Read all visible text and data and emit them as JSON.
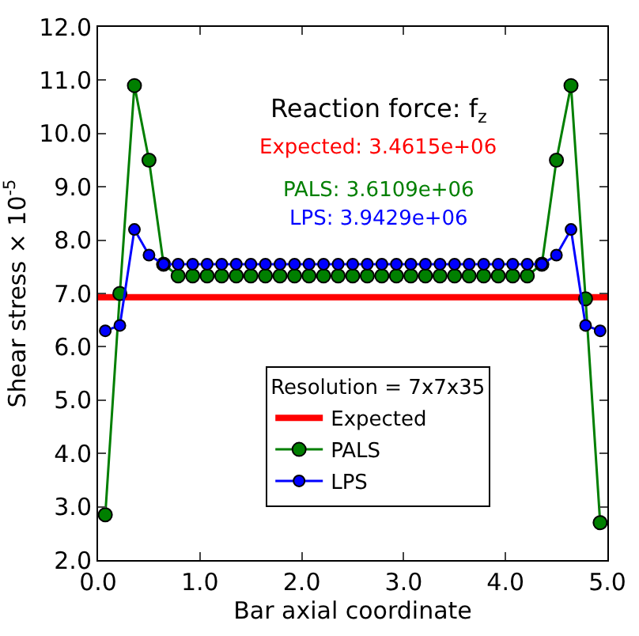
{
  "chart_data": {
    "type": "line",
    "xlabel": "Bar axial coordinate",
    "ylabel": "Shear stress × 10$^{-5}$",
    "annotations": [
      "Reaction force: f$_{z}$",
      "Expected: 3.4615e+06",
      "PALS: 3.6109e+06",
      "LPS: 3.9429e+06"
    ],
    "legend_title": "Resolution = 7x7x35",
    "x": [
      0.071,
      0.214,
      0.357,
      0.5,
      0.643,
      0.786,
      0.929,
      1.071,
      1.214,
      1.357,
      1.5,
      1.643,
      1.786,
      1.929,
      2.071,
      2.214,
      2.357,
      2.5,
      2.643,
      2.786,
      2.929,
      3.071,
      3.214,
      3.357,
      3.5,
      3.643,
      3.786,
      3.929,
      4.071,
      4.214,
      4.357,
      4.5,
      4.643,
      4.786,
      4.929
    ],
    "series": [
      {
        "name": "Expected",
        "color": "#ff0000",
        "x": [
          0,
          5
        ],
        "values": [
          6.93,
          6.93
        ],
        "marker": "none"
      },
      {
        "name": "PALS",
        "color": "#007f00",
        "values": [
          2.85,
          7.0,
          10.9,
          9.5,
          7.55,
          7.33,
          7.33,
          7.33,
          7.33,
          7.33,
          7.33,
          7.33,
          7.33,
          7.33,
          7.33,
          7.33,
          7.33,
          7.33,
          7.33,
          7.33,
          7.33,
          7.33,
          7.33,
          7.33,
          7.33,
          7.33,
          7.33,
          7.33,
          7.33,
          7.33,
          7.55,
          9.5,
          10.9,
          6.9,
          2.7
        ]
      },
      {
        "name": "LPS",
        "color": "#0000ff",
        "values": [
          6.3,
          6.4,
          8.2,
          7.72,
          7.55,
          7.55,
          7.55,
          7.55,
          7.55,
          7.55,
          7.55,
          7.55,
          7.55,
          7.55,
          7.55,
          7.55,
          7.55,
          7.55,
          7.55,
          7.55,
          7.55,
          7.55,
          7.55,
          7.55,
          7.55,
          7.55,
          7.55,
          7.55,
          7.55,
          7.55,
          7.55,
          7.72,
          8.2,
          6.4,
          6.3
        ]
      }
    ],
    "xlim": [
      0,
      5
    ],
    "ylim": [
      2,
      12
    ],
    "xticks": [
      {
        "value": 0,
        "label": "0.0"
      },
      {
        "value": 1,
        "label": "1.0"
      },
      {
        "value": 2,
        "label": "2.0"
      },
      {
        "value": 3,
        "label": "3.0"
      },
      {
        "value": 4,
        "label": "4.0"
      },
      {
        "value": 5,
        "label": "5.0"
      }
    ],
    "yticks": [
      {
        "value": 2,
        "label": "2.0"
      },
      {
        "value": 3,
        "label": "3.0"
      },
      {
        "value": 4,
        "label": "4.0"
      },
      {
        "value": 5,
        "label": "5.0"
      },
      {
        "value": 6,
        "label": "6.0"
      },
      {
        "value": 7,
        "label": "7.0"
      },
      {
        "value": 8,
        "label": "8.0"
      },
      {
        "value": 9,
        "label": "9.0"
      },
      {
        "value": 10,
        "label": "10.0"
      },
      {
        "value": 11,
        "label": "11.0"
      },
      {
        "value": 12,
        "label": "12.0"
      }
    ],
    "marker": "circle",
    "line_style": "solid",
    "legend": "bottom"
  }
}
